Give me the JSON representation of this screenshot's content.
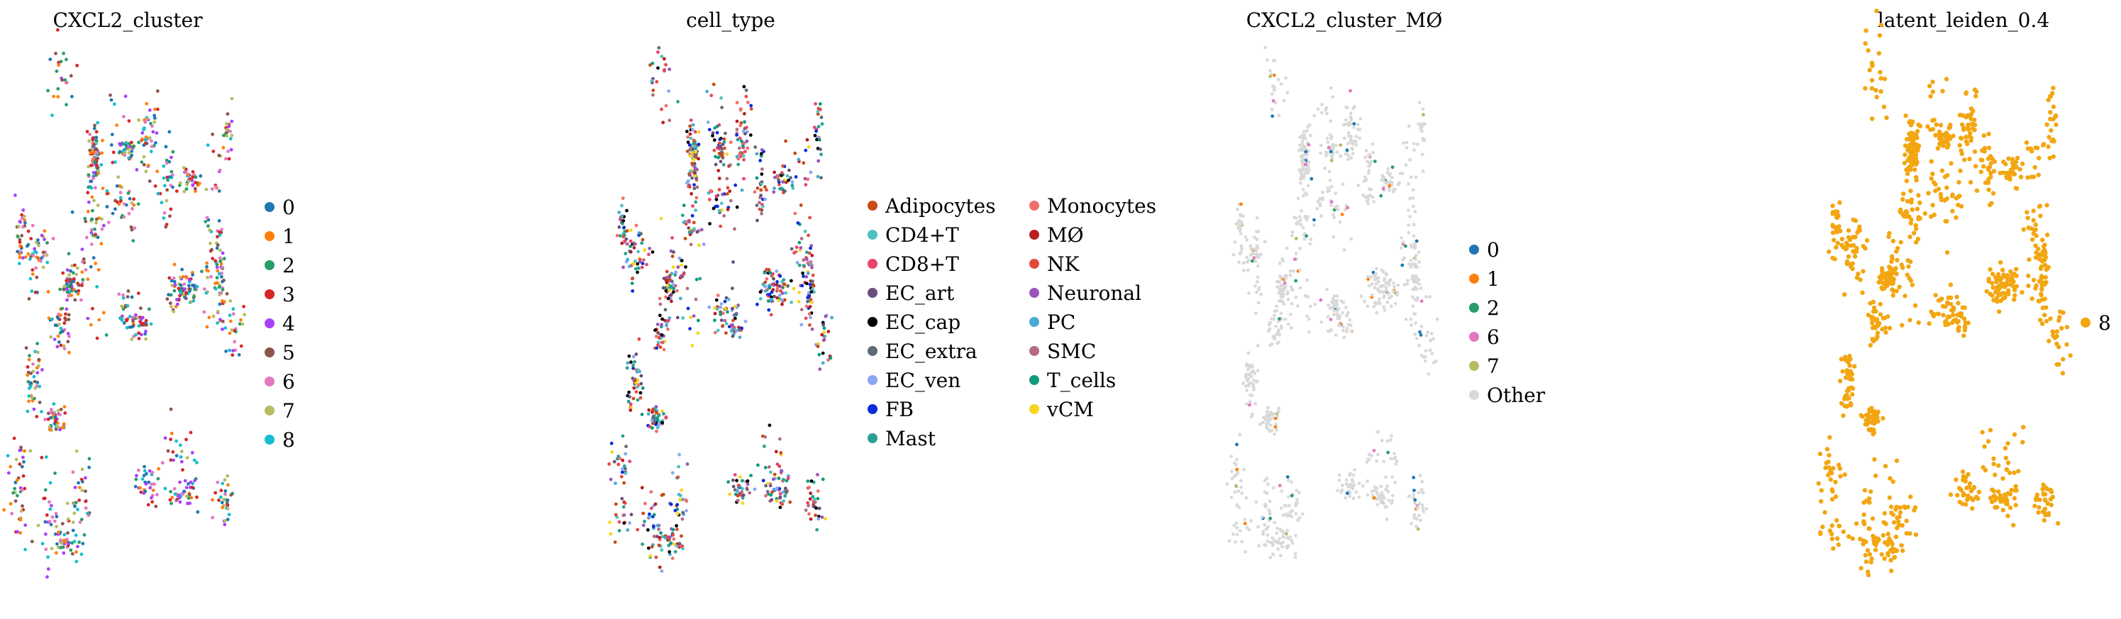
{
  "chart_data": [
    {
      "type": "scatter",
      "title": "CXCL2_cluster",
      "legend": {
        "placement": "right",
        "columns": 1,
        "items": [
          {
            "label": "0",
            "color": "#1f77b4"
          },
          {
            "label": "1",
            "color": "#ff7f0e"
          },
          {
            "label": "2",
            "color": "#279e68"
          },
          {
            "label": "3",
            "color": "#d62728"
          },
          {
            "label": "4",
            "color": "#aa40fc"
          },
          {
            "label": "5",
            "color": "#8c564b"
          },
          {
            "label": "6",
            "color": "#e377c2"
          },
          {
            "label": "7",
            "color": "#b5bd61"
          },
          {
            "label": "8",
            "color": "#17becf"
          }
        ]
      },
      "grid": false,
      "axes": "hidden"
    },
    {
      "type": "scatter",
      "title": "cell_type",
      "legend": {
        "placement": "right",
        "columns": 2,
        "items": [
          {
            "label": "Adipocytes",
            "color": "#c94a12"
          },
          {
            "label": "CD4+T",
            "color": "#4fc1c1"
          },
          {
            "label": "CD8+T",
            "color": "#e8446a"
          },
          {
            "label": "EC_art",
            "color": "#6b4d7c"
          },
          {
            "label": "EC_cap",
            "color": "#000000"
          },
          {
            "label": "EC_extra",
            "color": "#5f6a76"
          },
          {
            "label": "EC_ven",
            "color": "#89a7f0"
          },
          {
            "label": "FB",
            "color": "#0b2bdc"
          },
          {
            "label": "Mast",
            "color": "#2a9f94"
          },
          {
            "label": "Monocytes",
            "color": "#ef6f6a"
          },
          {
            "label": "MØ",
            "color": "#b81d22"
          },
          {
            "label": "NK",
            "color": "#e04a3c"
          },
          {
            "label": "Neuronal",
            "color": "#9a55b8"
          },
          {
            "label": "PC",
            "color": "#4aa9d0"
          },
          {
            "label": "SMC",
            "color": "#b46b82"
          },
          {
            "label": "T_cells",
            "color": "#0f9a7e"
          },
          {
            "label": "vCM",
            "color": "#f7d51d"
          }
        ]
      },
      "grid": false,
      "axes": "hidden"
    },
    {
      "type": "scatter",
      "title": "CXCL2_cluster_MØ",
      "legend": {
        "placement": "right",
        "columns": 1,
        "items": [
          {
            "label": "0",
            "color": "#1f77b4"
          },
          {
            "label": "1",
            "color": "#ff7f0e"
          },
          {
            "label": "2",
            "color": "#279e68"
          },
          {
            "label": "6",
            "color": "#e377c2"
          },
          {
            "label": "7",
            "color": "#b5bd61"
          },
          {
            "label": "Other",
            "color": "#d9d9d9"
          }
        ]
      },
      "grid": false,
      "axes": "hidden"
    },
    {
      "type": "scatter",
      "title": "latent_leiden_0.4",
      "legend": {
        "placement": "right",
        "columns": 1,
        "items": [
          {
            "label": "8",
            "color": "#f2a611"
          }
        ]
      },
      "grid": false,
      "axes": "hidden"
    }
  ]
}
